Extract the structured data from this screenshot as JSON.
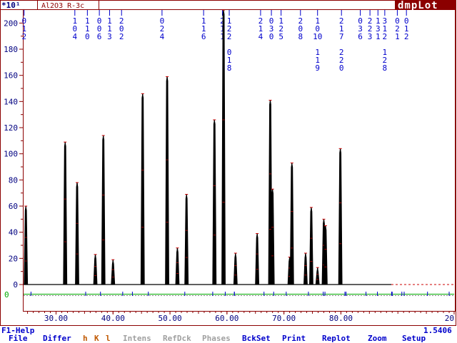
{
  "window": {
    "exponent_label": "*10¹",
    "sample_name": "Al2O3 R-3c",
    "app_logo": "dmpLot",
    "wavelength": "1.5406",
    "help_hint": "F1-Help"
  },
  "menu": [
    {
      "label": "File",
      "color": "#0000cc"
    },
    {
      "label": "Differ",
      "color": "#0000cc"
    },
    {
      "label": "h",
      "color": "#c05800"
    },
    {
      "label": "K",
      "color": "#c05800"
    },
    {
      "label": "l",
      "color": "#c05800"
    },
    {
      "label": "Intens",
      "color": "#a0a0a0"
    },
    {
      "label": "RefDck",
      "color": "#a0a0a0"
    },
    {
      "label": "Phases",
      "color": "#a0a0a0"
    },
    {
      "label": "BckSet",
      "color": "#0000cc"
    },
    {
      "label": "Print",
      "color": "#0000cc"
    },
    {
      "label": "Replot",
      "color": "#0000cc"
    },
    {
      "label": "Zoom",
      "color": "#0000cc"
    },
    {
      "label": "Setup",
      "color": "#0000cc"
    }
  ],
  "colors": {
    "frame": "#8b0000",
    "axis_text": "#000080",
    "hkl_text": "#0000cc",
    "observed": "#000000",
    "calc_marks": "#cc0000",
    "difference": "#00aa00",
    "reflection_ticks": "#0000cc"
  },
  "chart_data": {
    "type": "line",
    "title": "Al2O3 R-3c",
    "xlabel": "",
    "ylabel": "",
    "xlim": [
      24.3,
      100
    ],
    "ylim": [
      0,
      210
    ],
    "x_ticks": [
      "30.00",
      "40.00",
      "50.00",
      "60.00",
      "70.00",
      "80.00",
      "20"
    ],
    "y_ticks": [
      "0",
      "20",
      "40",
      "60",
      "80",
      "100",
      "120",
      "140",
      "160",
      "180",
      "200"
    ],
    "difference_zero_label": "0",
    "peaks": [
      {
        "x": 24.7,
        "y": 60
      },
      {
        "x": 31.6,
        "y": 109
      },
      {
        "x": 33.7,
        "y": 78
      },
      {
        "x": 36.9,
        "y": 23
      },
      {
        "x": 38.3,
        "y": 114
      },
      {
        "x": 40.0,
        "y": 19
      },
      {
        "x": 45.2,
        "y": 146
      },
      {
        "x": 49.5,
        "y": 159
      },
      {
        "x": 51.3,
        "y": 28
      },
      {
        "x": 52.9,
        "y": 69
      },
      {
        "x": 57.8,
        "y": 126
      },
      {
        "x": 59.4,
        "y": 210
      },
      {
        "x": 61.5,
        "y": 24
      },
      {
        "x": 65.3,
        "y": 39
      },
      {
        "x": 67.6,
        "y": 141
      },
      {
        "x": 68.0,
        "y": 73
      },
      {
        "x": 71.0,
        "y": 21
      },
      {
        "x": 71.4,
        "y": 93
      },
      {
        "x": 73.8,
        "y": 24
      },
      {
        "x": 74.8,
        "y": 59
      },
      {
        "x": 75.9,
        "y": 13
      },
      {
        "x": 77.0,
        "y": 50
      },
      {
        "x": 77.3,
        "y": 45
      },
      {
        "x": 79.9,
        "y": 104
      }
    ],
    "hkl_labels": [
      {
        "x": 24.4,
        "lines": [
          "0",
          "1",
          "2"
        ]
      },
      {
        "x": 33.3,
        "lines": [
          "1",
          "0",
          "4"
        ]
      },
      {
        "x": 35.5,
        "lines": [
          "1",
          "1",
          "0"
        ]
      },
      {
        "x": 37.6,
        "lines": [
          "0",
          "0",
          "6"
        ]
      },
      {
        "x": 39.4,
        "lines": [
          "1",
          "1",
          "3"
        ]
      },
      {
        "x": 41.5,
        "lines": [
          "2",
          "0",
          "2"
        ]
      },
      {
        "x": 48.6,
        "lines": [
          "0",
          "2",
          "4"
        ]
      },
      {
        "x": 55.9,
        "lines": [
          "1",
          "1",
          "6"
        ]
      },
      {
        "x": 59.2,
        "lines": [
          "2",
          "1",
          "1"
        ]
      },
      {
        "x": 60.4,
        "lines": [
          "1",
          "2",
          "2",
          "",
          "0",
          "1",
          "8"
        ]
      },
      {
        "x": 65.9,
        "lines": [
          "2",
          "1",
          "4"
        ]
      },
      {
        "x": 67.8,
        "lines": [
          "0",
          "3",
          "0"
        ]
      },
      {
        "x": 69.5,
        "lines": [
          "1",
          "2",
          "5"
        ]
      },
      {
        "x": 72.9,
        "lines": [
          "2",
          "0",
          "8"
        ]
      },
      {
        "x": 75.9,
        "lines": [
          "1",
          "0",
          "10",
          "",
          "1",
          "1",
          "9"
        ]
      },
      {
        "x": 80.1,
        "lines": [
          "2",
          "1",
          "7",
          "",
          "2",
          "2",
          "0"
        ]
      },
      {
        "x": 83.4,
        "lines": [
          "0",
          "3",
          "6"
        ]
      },
      {
        "x": 85.1,
        "lines": [
          "2",
          "2",
          "3"
        ]
      },
      {
        "x": 86.5,
        "lines": [
          "1",
          "3",
          "1"
        ]
      },
      {
        "x": 87.7,
        "lines": [
          "3",
          "1",
          "2",
          "",
          "1",
          "2",
          "8"
        ]
      },
      {
        "x": 89.9,
        "lines": [
          "0",
          "2",
          "1"
        ]
      },
      {
        "x": 91.5,
        "lines": [
          "0",
          "1",
          "2"
        ]
      }
    ],
    "reflection_ticks_x": [
      25.6,
      35.2,
      37.8,
      41.7,
      43.4,
      46.2,
      52.6,
      57.5,
      59.7,
      61.3,
      61.3,
      66.5,
      68.2,
      70.4,
      74.3,
      76.9,
      77.2,
      80.7,
      80.9,
      84.4,
      86.4,
      88.9,
      89.0,
      90.7,
      91.1,
      95.2,
      99.0
    ]
  }
}
